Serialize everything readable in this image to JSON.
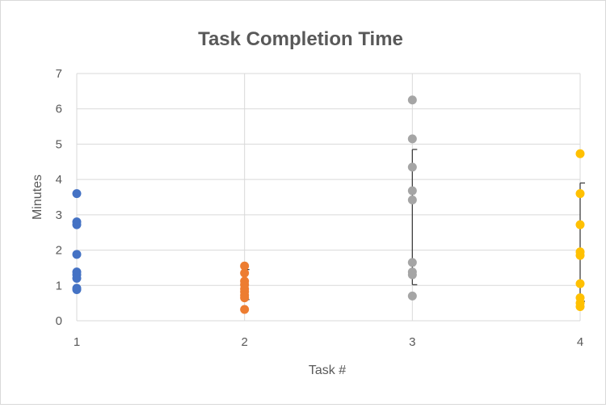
{
  "chart_data": {
    "type": "scatter",
    "title": "Task Completion Time",
    "xlabel": "Task #",
    "ylabel": "Minutes",
    "xlim": [
      1,
      4
    ],
    "ylim": [
      0,
      7
    ],
    "x_ticks": [
      "1",
      "2",
      "3",
      "4"
    ],
    "y_ticks": [
      "0",
      "1",
      "2",
      "3",
      "4",
      "5",
      "6",
      "7"
    ],
    "grid": true,
    "series": [
      {
        "x": 1,
        "color": "#4472c4",
        "values": [
          3.6,
          2.8,
          2.72,
          1.88,
          1.38,
          1.3,
          1.2,
          0.92,
          0.88
        ],
        "error_bar": null
      },
      {
        "x": 2,
        "color": "#ed7d31",
        "values": [
          1.55,
          1.35,
          1.12,
          1.02,
          0.9,
          0.82,
          0.72,
          0.65,
          0.32
        ],
        "error_bar": {
          "low": 0.6,
          "high": 1.45
        }
      },
      {
        "x": 3,
        "color": "#a5a5a5",
        "values": [
          6.25,
          5.15,
          4.35,
          3.68,
          3.42,
          1.65,
          1.38,
          1.3,
          0.7
        ],
        "error_bar": {
          "low": 1.02,
          "high": 4.85
        }
      },
      {
        "x": 4,
        "color": "#ffc000",
        "values": [
          4.73,
          3.6,
          2.72,
          1.95,
          1.85,
          1.05,
          0.65,
          0.5,
          0.4
        ],
        "error_bar": {
          "low": 0.55,
          "high": 3.9
        }
      }
    ]
  }
}
